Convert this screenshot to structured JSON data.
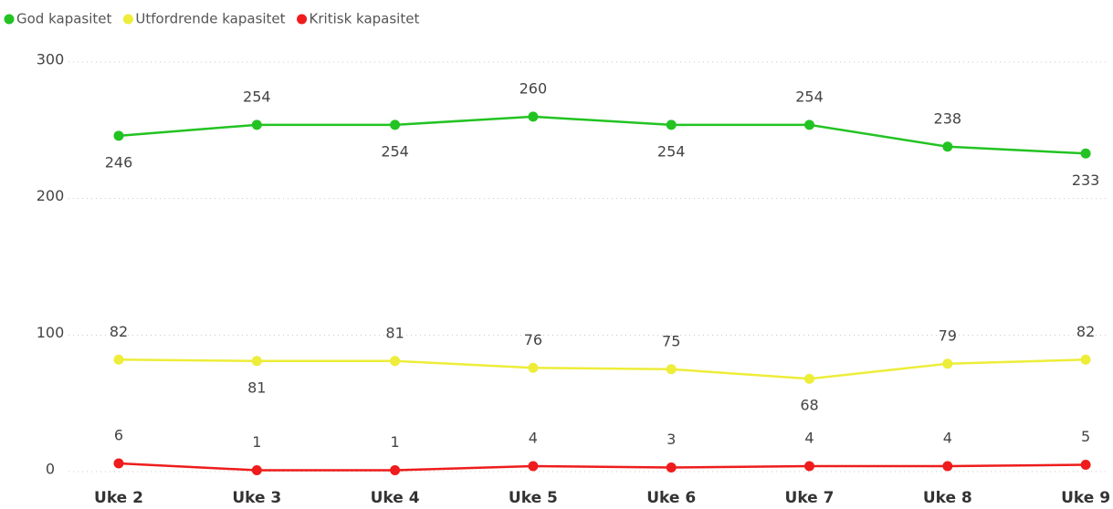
{
  "chart_data": {
    "type": "line",
    "categories": [
      "Uke 2",
      "Uke 3",
      "Uke 4",
      "Uke 5",
      "Uke 6",
      "Uke 7",
      "Uke 8",
      "Uke 9"
    ],
    "series": [
      {
        "name": "God kapasitet",
        "color": "#22c322",
        "values": [
          246,
          254,
          254,
          260,
          254,
          254,
          238,
          233
        ]
      },
      {
        "name": "Utfordrende kapasitet",
        "color": "#eded3a",
        "values": [
          82,
          81,
          81,
          76,
          75,
          68,
          79,
          82
        ]
      },
      {
        "name": "Kritisk kapasitet",
        "color": "#ee1c1c",
        "values": [
          6,
          1,
          1,
          4,
          3,
          4,
          4,
          5
        ]
      }
    ],
    "ylim": [
      0,
      300
    ],
    "yticks": [
      0,
      100,
      200,
      300
    ],
    "grid": true,
    "legend": "top-left"
  }
}
